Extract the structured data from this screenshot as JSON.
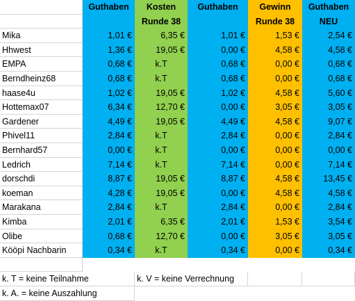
{
  "headers": {
    "line1": [
      "Guthaben",
      "Kosten",
      "Guthaben",
      "Gewinn",
      "Guthaben"
    ],
    "line2": [
      "",
      "Runde 38",
      "",
      "Runde 38",
      "NEU"
    ]
  },
  "rows": [
    {
      "name": "Mika",
      "g1": "1,01 €",
      "kosten": "6,35 €",
      "g2": "1,01 €",
      "gewinn": "1,53 €",
      "neu": "2,54 €"
    },
    {
      "name": "Hhwest",
      "g1": "1,36 €",
      "kosten": "19,05 €",
      "g2": "0,00 €",
      "gewinn": "4,58 €",
      "neu": "4,58 €"
    },
    {
      "name": "EMPA",
      "g1": "0,68 €",
      "kosten": "k.T",
      "g2": "0,68 €",
      "gewinn": "0,00 €",
      "neu": "0,68 €"
    },
    {
      "name": "Berndheinz68",
      "g1": "0,68 €",
      "kosten": "k.T",
      "g2": "0,68 €",
      "gewinn": "0,00 €",
      "neu": "0,68 €"
    },
    {
      "name": "haase4u",
      "g1": "1,02 €",
      "kosten": "19,05 €",
      "g2": "1,02 €",
      "gewinn": "4,58 €",
      "neu": "5,60 €"
    },
    {
      "name": "Hottemax07",
      "g1": "6,34 €",
      "kosten": "12,70 €",
      "g2": "0,00 €",
      "gewinn": "3,05 €",
      "neu": "3,05 €"
    },
    {
      "name": "Gardener",
      "g1": "4,49 €",
      "kosten": "19,05 €",
      "g2": "4,49 €",
      "gewinn": "4,58 €",
      "neu": "9,07 €"
    },
    {
      "name": "Phivel11",
      "g1": "2,84 €",
      "kosten": "k.T",
      "g2": "2,84 €",
      "gewinn": "0,00 €",
      "neu": "2,84 €"
    },
    {
      "name": "Bernhard57",
      "g1": "0,00 €",
      "kosten": "k.T",
      "g2": "0,00 €",
      "gewinn": "0,00 €",
      "neu": "0,00 €"
    },
    {
      "name": "Ledrich",
      "g1": "7,14 €",
      "kosten": "k.T",
      "g2": "7,14 €",
      "gewinn": "0,00 €",
      "neu": "7,14 €"
    },
    {
      "name": "dorschdi",
      "g1": "8,87 €",
      "kosten": "19,05 €",
      "g2": "8,87 €",
      "gewinn": "4,58 €",
      "neu": "13,45 €"
    },
    {
      "name": "koeman",
      "g1": "4,28 €",
      "kosten": "19,05 €",
      "g2": "0,00 €",
      "gewinn": "4,58 €",
      "neu": "4,58 €"
    },
    {
      "name": "Marakana",
      "g1": "2,84 €",
      "kosten": "k.T",
      "g2": "2,84 €",
      "gewinn": "0,00 €",
      "neu": "2,84 €"
    },
    {
      "name": "Kimba",
      "g1": "2,01 €",
      "kosten": "6,35 €",
      "g2": "2,01 €",
      "gewinn": "1,53 €",
      "neu": "3,54 €"
    },
    {
      "name": "Olibe",
      "g1": "0,68 €",
      "kosten": "12,70 €",
      "g2": "0,00 €",
      "gewinn": "3,05 €",
      "neu": "3,05 €"
    },
    {
      "name": "Kööpi Nachbarin",
      "g1": "0,34 €",
      "kosten": "k.T",
      "g2": "0,34 €",
      "gewinn": "0,00 €",
      "neu": "0,34 €"
    }
  ],
  "legend": {
    "kt": "k. T = keine Teilnahme",
    "kv": "k. V = keine Verrechnung",
    "ka": "k. A. = keine Auszahlung"
  },
  "colors": {
    "blue": "#00b0f0",
    "green": "#92d050",
    "orange": "#ffc000"
  }
}
